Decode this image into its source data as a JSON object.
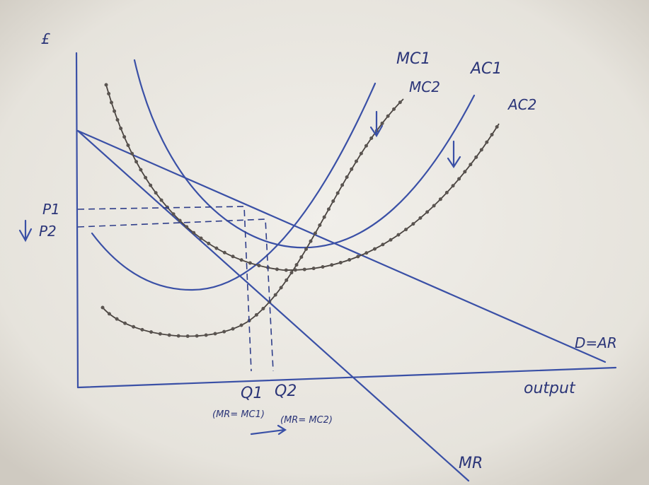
{
  "axes": {
    "y_label": "£",
    "x_label": "output"
  },
  "curves": {
    "mc1": "MC1",
    "mc2": "MC2",
    "ac1": "AC1",
    "ac2": "AC2",
    "demand": "D=AR",
    "mr": "MR"
  },
  "prices": {
    "p1": "P1",
    "p2": "P2"
  },
  "quantities": {
    "q1": "Q1",
    "q2": "Q2"
  },
  "notes": {
    "q1": "(MR= MC1)",
    "q2": "(MR= MC2)"
  }
}
